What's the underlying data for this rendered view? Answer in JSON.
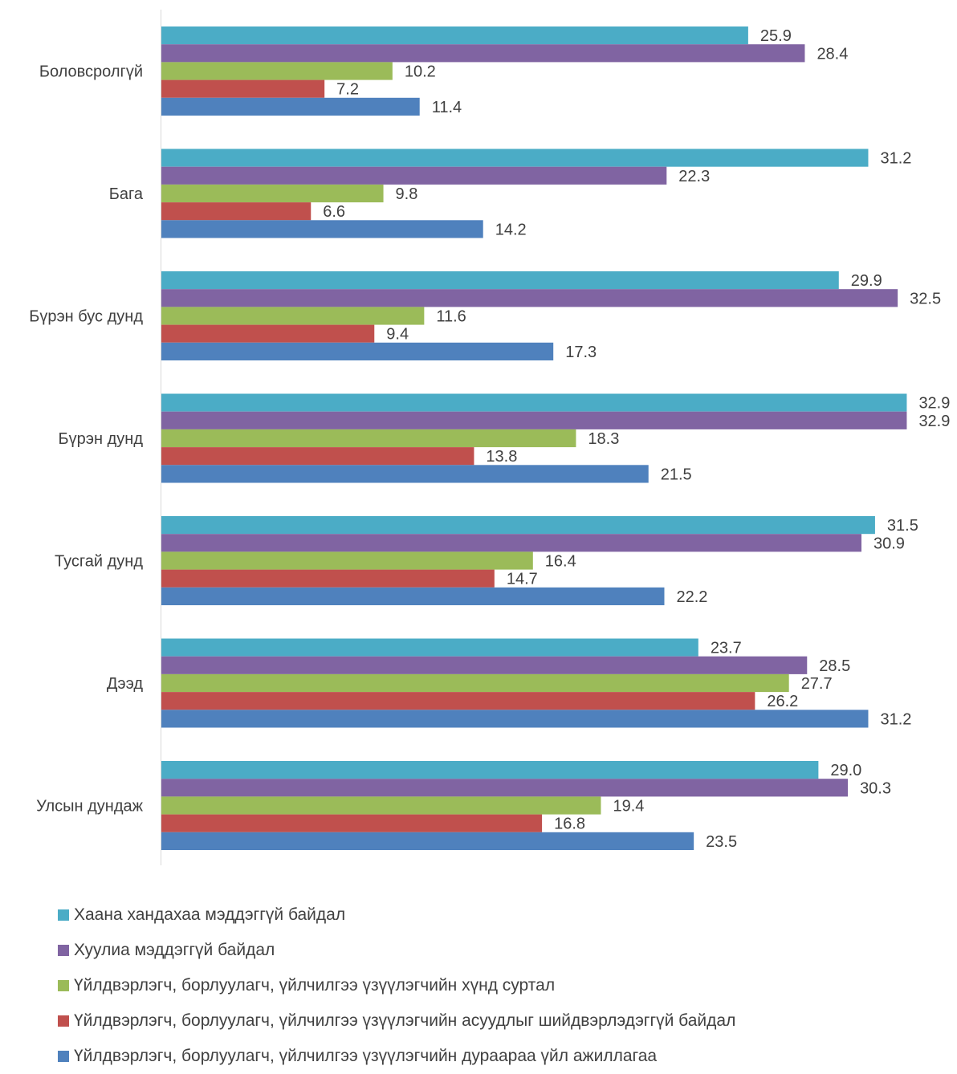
{
  "chart_data": {
    "type": "bar",
    "orientation": "horizontal",
    "categories": [
      "Боловсролгүй",
      "Бага",
      "Бүрэн бус дунд",
      "Бүрэн дунд",
      "Тусгай дунд",
      "Дээд",
      "Улсын дундаж"
    ],
    "series": [
      {
        "name": "Хаана хандахаа мэддэггүй байдал",
        "color": "#4bacc6",
        "values": [
          25.9,
          31.2,
          29.9,
          32.9,
          31.5,
          23.7,
          29.0
        ],
        "labels": [
          "25.9",
          "31.2",
          "29.9",
          "32.9",
          "31.5",
          "23.7",
          "29.0"
        ]
      },
      {
        "name": "Хуулиа мэддэггүй байдал",
        "color": "#8064a2",
        "values": [
          28.4,
          22.3,
          32.5,
          32.9,
          30.9,
          28.5,
          30.3
        ],
        "labels": [
          "28.4",
          "22.3",
          "32.5",
          "32.9",
          "30.9",
          "28.5",
          "30.3"
        ]
      },
      {
        "name": "Үйлдвэрлэгч, борлуулагч, үйлчилгээ үзүүлэгчийн хүнд суртал",
        "color": "#9bbb59",
        "values": [
          10.2,
          9.8,
          11.6,
          18.3,
          16.4,
          27.7,
          19.4
        ],
        "labels": [
          "10.2",
          "9.8",
          "11.6",
          "18.3",
          "16.4",
          "27.7",
          "19.4"
        ]
      },
      {
        "name": "Үйлдвэрлэгч, борлуулагч, үйлчилгээ үзүүлэгчийн асуудлыг шийдвэрлэдэггүй байдал",
        "color": "#c0504d",
        "values": [
          7.2,
          6.6,
          9.4,
          13.8,
          14.7,
          26.2,
          16.8
        ],
        "labels": [
          "7.2",
          "6.6",
          "9.4",
          "13.8",
          "14.7",
          "26.2",
          "16.8"
        ]
      },
      {
        "name": "Үйлдвэрлэгч, борлуулагч, үйлчилгээ үзүүлэгчийн дураараа үйл ажиллагаа",
        "color": "#4f81bd",
        "values": [
          11.4,
          14.2,
          17.3,
          21.5,
          22.2,
          31.2,
          23.5
        ],
        "labels": [
          "11.4",
          "14.2",
          "17.3",
          "21.5",
          "22.2",
          "31.2",
          "23.5"
        ]
      }
    ],
    "xlim": [
      0,
      35
    ],
    "grid": false,
    "legend_position": "bottom"
  }
}
